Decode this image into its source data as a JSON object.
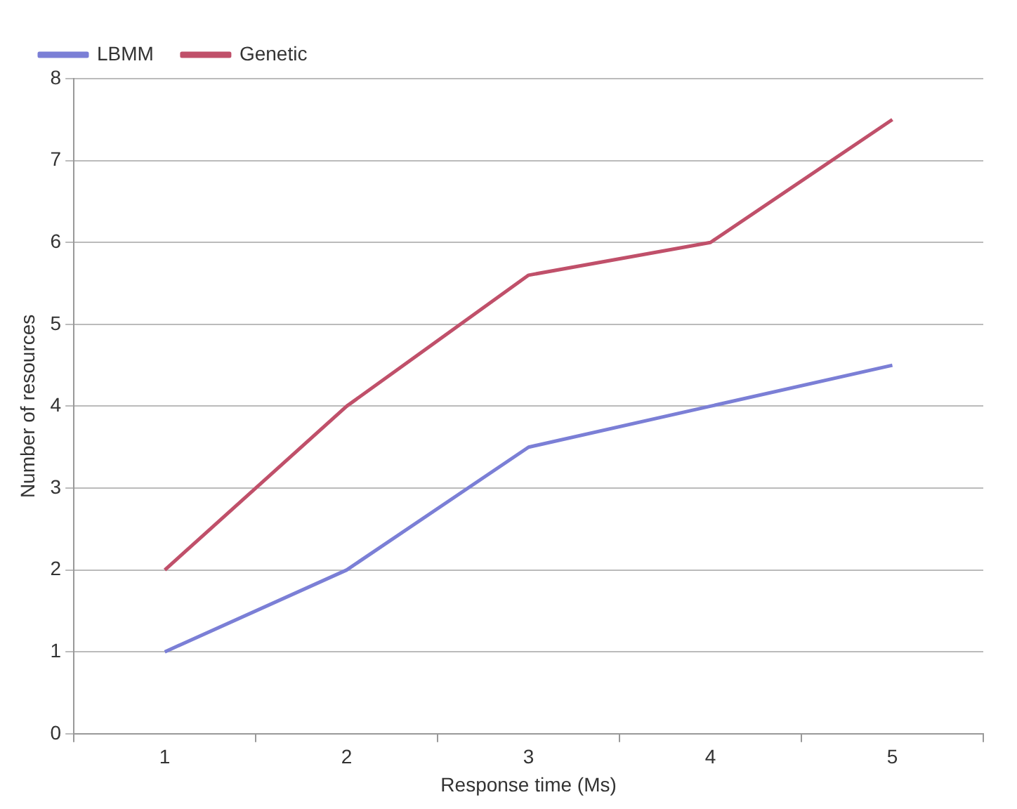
{
  "chart_data": {
    "type": "line",
    "xlabel": "Response time (Ms)",
    "ylabel": "Number of resources",
    "categories": [
      "1",
      "2",
      "3",
      "4",
      "5"
    ],
    "series": [
      {
        "name": "LBMM",
        "color": "#7b7fd6",
        "values": [
          1,
          2,
          3.5,
          4,
          4.5
        ]
      },
      {
        "name": "Genetic",
        "color": "#c0506a",
        "values": [
          2,
          4,
          5.6,
          6,
          7.5
        ]
      }
    ],
    "ylim": [
      0,
      8
    ],
    "yticks": [
      0,
      1,
      2,
      3,
      4,
      5,
      6,
      7,
      8
    ],
    "grid": "y",
    "legend": "top left",
    "marker": "none",
    "line_style": "solid"
  }
}
